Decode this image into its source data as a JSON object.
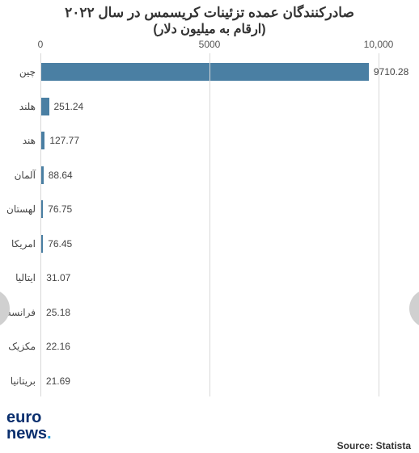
{
  "title_line1": "صادرکنندگان عمده تزئینات کریسمس در سال ۲۰۲۲",
  "title_line2": "(ارقام به میلیون دلار)",
  "axis": {
    "ticks": [
      {
        "value": 0,
        "label": "0"
      },
      {
        "value": 5000,
        "label": "5000"
      },
      {
        "value": 10000,
        "label": "10,000"
      }
    ],
    "max": 10000
  },
  "bar_color": "#4a7fa3",
  "grid_color": "#d8d8d8",
  "label_fontsize": 12,
  "title_fontsize": 17,
  "rows": [
    {
      "label": "چین",
      "value": 9710.28
    },
    {
      "label": "هلند",
      "value": 251.24
    },
    {
      "label": "هند",
      "value": 127.77
    },
    {
      "label": "آلمان",
      "value": 88.64
    },
    {
      "label": "لهستان",
      "value": 76.75
    },
    {
      "label": "امریکا",
      "value": 76.45
    },
    {
      "label": "ایتالیا",
      "value": 31.07
    },
    {
      "label": "فرانسه",
      "value": 25.18
    },
    {
      "label": "مکزیک",
      "value": 22.16
    },
    {
      "label": "بریتانیا",
      "value": 21.69
    }
  ],
  "logo": {
    "line1": "euro",
    "line2": "news",
    "dot": "."
  },
  "source": "Source: Statista"
}
